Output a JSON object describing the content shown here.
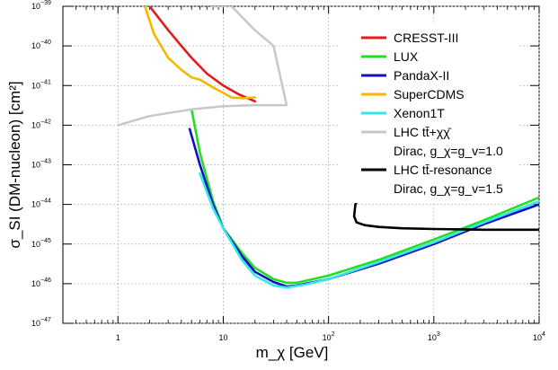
{
  "chart_data": {
    "type": "line",
    "xscale": "log",
    "yscale": "log",
    "xlim": [
      0.3,
      10000
    ],
    "ylim": [
      1e-47,
      1e-39
    ],
    "xlabel": "m_χ [GeV]",
    "ylabel": "σ_SI (DM-nucleon) [cm²]",
    "x_ticks": [
      {
        "value": 1,
        "label": "1"
      },
      {
        "value": 10,
        "label": "10"
      },
      {
        "value": 100,
        "label": "10",
        "exp": "2"
      },
      {
        "value": 1000,
        "label": "10",
        "exp": "3"
      },
      {
        "value": 10000,
        "label": "10",
        "exp": "4"
      }
    ],
    "y_ticks": [
      {
        "value": -47,
        "label": "10",
        "exp": "−47"
      },
      {
        "value": -46,
        "label": "10",
        "exp": "−46"
      },
      {
        "value": -45,
        "label": "10",
        "exp": "−45"
      },
      {
        "value": -44,
        "label": "10",
        "exp": "−44"
      },
      {
        "value": -43,
        "label": "10",
        "exp": "−43"
      },
      {
        "value": -42,
        "label": "10",
        "exp": "−42"
      },
      {
        "value": -41,
        "label": "10",
        "exp": "−41"
      },
      {
        "value": -40,
        "label": "10",
        "exp": "−40"
      },
      {
        "value": -39,
        "label": "10",
        "exp": "−39"
      }
    ],
    "grid": true,
    "legend_position": "top-right",
    "series": [
      {
        "name": "CRESST-III",
        "color": "#e41a1c",
        "x": [
          2.0,
          3.0,
          4.0,
          5.0,
          7.0,
          10.0,
          14.0,
          20.0
        ],
        "y": [
          1e-39,
          2.5e-40,
          1e-40,
          5e-41,
          2e-41,
          1e-41,
          6e-42,
          4e-42
        ]
      },
      {
        "name": "LUX",
        "color": "#22dd22",
        "x": [
          5.0,
          6.0,
          8.0,
          10.0,
          15.0,
          20.0,
          30.0,
          40.0,
          50.0,
          100.0,
          300.0,
          1000.0,
          3000.0,
          10000.0
        ],
        "y": [
          2.5e-42,
          2e-43,
          1.2e-44,
          2.5e-45,
          6e-46,
          2.5e-46,
          1.3e-46,
          1.05e-46,
          1.05e-46,
          1.6e-46,
          4e-46,
          1.3e-45,
          4e-45,
          1.5e-44
        ]
      },
      {
        "name": "PandaX-II",
        "color": "#1010c0",
        "x": [
          4.8,
          6.0,
          8.0,
          10.0,
          15.0,
          20.0,
          30.0,
          40.0,
          50.0,
          100.0,
          300.0,
          1000.0,
          3000.0,
          10000.0
        ],
        "y": [
          8e-43,
          1e-43,
          1e-44,
          2.5e-45,
          5e-46,
          2e-46,
          1.1e-46,
          8.5e-47,
          9e-47,
          1.3e-46,
          3.2e-46,
          1e-45,
          3.2e-45,
          1e-44
        ]
      },
      {
        "name": "SuperCDMS",
        "color": "#f5b800",
        "x": [
          1.8,
          2.2,
          3.0,
          4.0,
          5.0,
          6.0,
          8.0,
          10.0,
          12.0,
          15.0,
          20.0
        ],
        "y": [
          1e-39,
          2e-40,
          5e-41,
          2.5e-41,
          1.6e-41,
          1.4e-41,
          9e-42,
          6.5e-42,
          5e-42,
          4.8e-42,
          5e-42
        ]
      },
      {
        "name": "Xenon1T",
        "color": "#33e8e8",
        "x": [
          6.0,
          8.0,
          10.0,
          15.0,
          20.0,
          30.0,
          40.0,
          60.0,
          100.0,
          300.0,
          1000.0,
          3000.0,
          10000.0
        ],
        "y": [
          6e-44,
          8e-45,
          2.5e-45,
          4e-46,
          1.6e-46,
          9e-47,
          8e-47,
          9.5e-47,
          1.3e-46,
          3.5e-46,
          1.1e-45,
          3.5e-45,
          1.2e-44
        ]
      },
      {
        "name": "LHC tt̄+χχ̄",
        "subtitle": "Dirac, g_χ=g_v=1.0",
        "color": "#c8c8c8",
        "x": [
          1.0,
          2.0,
          5.0,
          10.0,
          20.0,
          35.0,
          40.0,
          30.0,
          20.0,
          12.0,
          8.0
        ],
        "y": [
          1e-42,
          1.7e-42,
          2.5e-42,
          3e-42,
          3.2e-42,
          3.2e-42,
          3.2e-42,
          1e-40,
          2.5e-40,
          1e-39,
          1e-39
        ]
      },
      {
        "name": "LHC tt̄-resonance",
        "subtitle": "Dirac, g_χ=g_v=1.5",
        "color": "#000000",
        "x": [
          190.0,
          180.0,
          175.0,
          185.0,
          220.0,
          300.0,
          500.0,
          1000.0,
          3000.0,
          10000.0
        ],
        "y": [
          1.3e-44,
          1e-44,
          5e-45,
          3.5e-45,
          3e-45,
          2.7e-45,
          2.5e-45,
          2.4e-45,
          2.3e-45,
          2.3e-45
        ]
      }
    ]
  }
}
